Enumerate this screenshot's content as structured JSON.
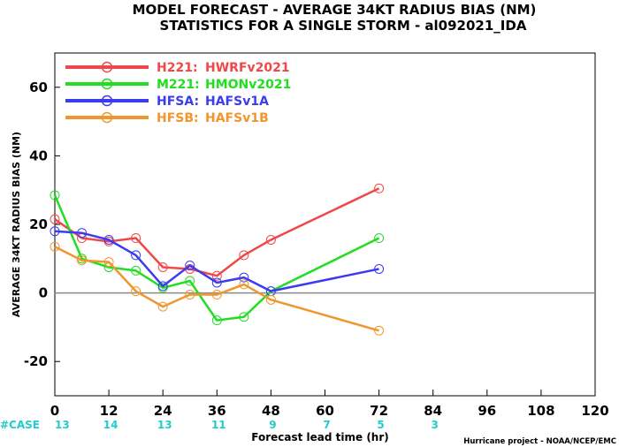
{
  "chart_data": {
    "type": "line",
    "title": "MODEL FORECAST - AVERAGE 34KT RADIUS BIAS (NM)",
    "subtitle": "STATISTICS FOR A SINGLE STORM - al092021_IDA",
    "xlabel": "Forecast lead time (hr)",
    "ylabel": "AVERAGE 34KT RADIUS BIAS (NM)",
    "xlim": [
      0,
      120
    ],
    "ylim": [
      -30,
      70
    ],
    "xticks": [
      "0",
      "12",
      "24",
      "36",
      "48",
      "60",
      "72",
      "84",
      "96",
      "108",
      "120"
    ],
    "yticks": [
      "60",
      "40",
      "20",
      "0",
      "-20"
    ],
    "legend_position": "top-left",
    "grid": false,
    "zero_line": true,
    "series": [
      {
        "label": "H221:",
        "name": "HWRFv2021",
        "color": "#f04848",
        "x": [
          0,
          6,
          12,
          18,
          24,
          30,
          36,
          42,
          48,
          72
        ],
        "y": [
          21.5,
          16,
          15,
          16,
          7.5,
          7,
          5,
          11,
          15.5,
          30.5
        ]
      },
      {
        "label": "M221:",
        "name": "HMONv2021",
        "color": "#22dd22",
        "x": [
          0,
          6,
          12,
          18,
          24,
          30,
          36,
          42,
          48,
          72
        ],
        "y": [
          28.5,
          10,
          7.5,
          6.5,
          1.5,
          3.5,
          -8,
          -7,
          0.5,
          16
        ]
      },
      {
        "label": "HFSA:",
        "name": "HAFSv1A",
        "color": "#3b3bf0",
        "x": [
          0,
          6,
          12,
          18,
          24,
          30,
          36,
          42,
          48,
          72
        ],
        "y": [
          18,
          17.5,
          15.5,
          11,
          2,
          8,
          3,
          4.5,
          0.5,
          7
        ]
      },
      {
        "label": "HFSB:",
        "name": "HAFSv1B",
        "color": "#f0962e",
        "x": [
          0,
          6,
          12,
          18,
          24,
          30,
          36,
          42,
          48,
          72
        ],
        "y": [
          13.5,
          9.5,
          9,
          0.5,
          -4,
          -0.5,
          -0.5,
          2.5,
          -2,
          -11
        ]
      }
    ],
    "case_label": "#CASE",
    "case_color": "#22cccc",
    "cases": [
      {
        "x": 0,
        "n": "13"
      },
      {
        "x": 12,
        "n": "14"
      },
      {
        "x": 24,
        "n": "13"
      },
      {
        "x": 36,
        "n": "11"
      },
      {
        "x": 48,
        "n": "9"
      },
      {
        "x": 60,
        "n": "7"
      },
      {
        "x": 72,
        "n": "5"
      },
      {
        "x": 84,
        "n": "3"
      }
    ],
    "credit": "Hurricane project - NOAA/NCEP/EMC"
  }
}
